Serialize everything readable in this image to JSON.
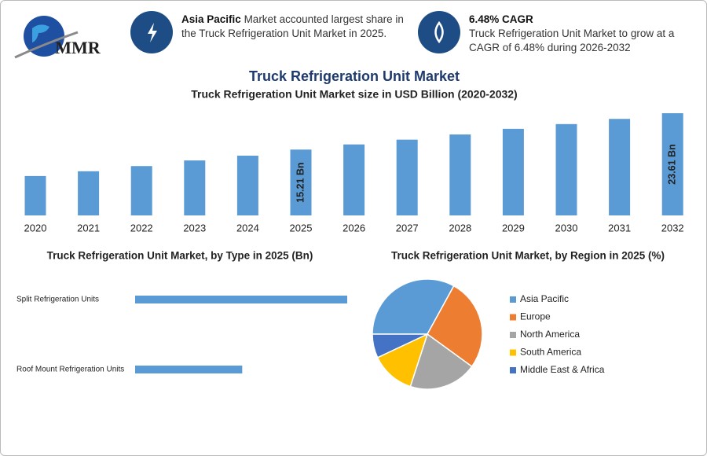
{
  "header": {
    "logo": "MMR",
    "highlights": [
      {
        "title": "Asia Pacific",
        "text": "Market accounted largest share in the Truck Refrigeration Unit Market in 2025."
      },
      {
        "title": "6.48% CAGR",
        "text": "Truck Refrigeration Unit Market to grow at a CAGR of 6.48% during 2026-2032"
      }
    ]
  },
  "chart_data": [
    {
      "type": "bar",
      "title": "Truck Refrigeration Unit Market",
      "subtitle": "Truck Refrigeration Unit Market size in USD Billion (2020-2032)",
      "categories": [
        "2020",
        "2021",
        "2022",
        "2023",
        "2024",
        "2025",
        "2026",
        "2027",
        "2028",
        "2029",
        "2030",
        "2031",
        "2032"
      ],
      "values": [
        9.1,
        10.2,
        11.4,
        12.7,
        13.8,
        15.21,
        16.4,
        17.5,
        18.7,
        20.0,
        21.1,
        22.3,
        23.61
      ],
      "value_labels": [
        null,
        null,
        null,
        null,
        null,
        "15.21 Bn",
        null,
        null,
        null,
        null,
        null,
        null,
        "23.61 Bn"
      ],
      "color": "#5b9bd5"
    },
    {
      "type": "hbar",
      "title": "Truck Refrigeration Unit Market, by Type in 2025 (Bn)",
      "categories": [
        "Split Refrigeration Units",
        "Roof Mount Refrigeration Units"
      ],
      "values": [
        10.1,
        5.1
      ],
      "color": "#5b9bd5"
    },
    {
      "type": "pie",
      "title": "Truck Refrigeration Unit Market, by Region in 2025 (%)",
      "series": [
        {
          "name": "Asia Pacific",
          "color": "#5b9bd5",
          "values": [
            33
          ]
        },
        {
          "name": "Europe",
          "color": "#ed7d31",
          "values": [
            27
          ]
        },
        {
          "name": "North America",
          "color": "#a5a5a5",
          "values": [
            20
          ]
        },
        {
          "name": "South America",
          "color": "#ffc000",
          "values": [
            13
          ]
        },
        {
          "name": "Middle East & Africa",
          "color": "#4472c4",
          "values": [
            7
          ]
        }
      ]
    }
  ]
}
